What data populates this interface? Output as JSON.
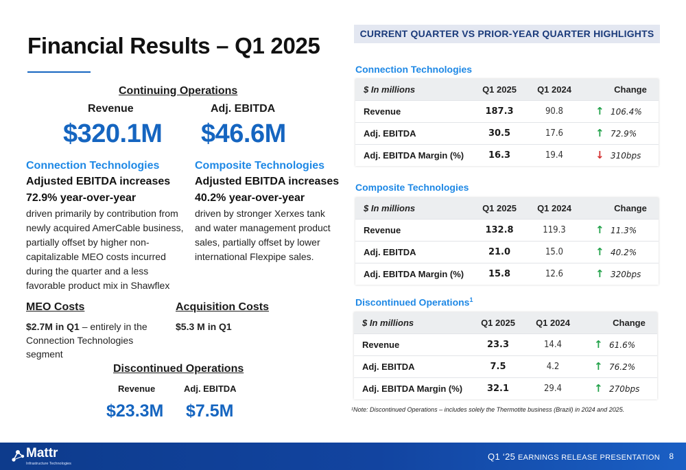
{
  "title": "Financial Results – Q1 2025",
  "continuing": {
    "heading": "Continuing Operations",
    "revenue_label": "Revenue",
    "revenue_value": "$320.1M",
    "ebitda_label": "Adj. EBITDA",
    "ebitda_value": "$46.6M"
  },
  "segments": [
    {
      "title": "Connection Technologies",
      "headline1": "Adjusted EBITDA increases",
      "headline2": "72.9% year-over-year",
      "body": "driven primarily by contribution from newly acquired AmerCable business, partially offset by higher non-capitalizable MEO costs incurred during the quarter and a less favorable product mix in Shawflex"
    },
    {
      "title": "Composite Technologies",
      "headline1": "Adjusted EBITDA increases",
      "headline2": "40.2% year-over-year",
      "body": "driven by stronger Xerxes tank and water management product sales, partially offset by lower international Flexpipe sales."
    }
  ],
  "meo": {
    "title": "MEO Costs",
    "bold": "$2.7M in Q1",
    "rest": " – entirely in the Connection Technologies segment"
  },
  "acquisition": {
    "title": "Acquisition Costs",
    "bold": "$5.3 M in Q1"
  },
  "discontinued": {
    "heading": "Discontinued Operations",
    "revenue_label": "Revenue",
    "revenue_value": "$23.3M",
    "ebitda_label": "Adj. EBITDA",
    "ebitda_value": "$7.5M"
  },
  "banner": "CURRENT QUARTER VS PRIOR-YEAR QUARTER HIGHLIGHTS",
  "tables": [
    {
      "title": "Connection Technologies",
      "title_sup": "",
      "headers": [
        "$ In millions",
        "Q1 2025",
        "Q1 2024",
        "Change"
      ],
      "rows": [
        {
          "label": "Revenue",
          "q1_2025": "187.3",
          "q1_2024": "90.8",
          "change": "106.4%",
          "direction": "up",
          "arrow": "↑"
        },
        {
          "label": "Adj. EBITDA",
          "q1_2025": "30.5",
          "q1_2024": "17.6",
          "change": "72.9%",
          "direction": "up",
          "arrow": "↑"
        },
        {
          "label": "Adj. EBITDA Margin (%)",
          "q1_2025": "16.3",
          "q1_2024": "19.4",
          "change": "310bps",
          "direction": "down",
          "arrow": "↓"
        }
      ]
    },
    {
      "title": "Composite Technologies",
      "title_sup": "",
      "headers": [
        "$ In millions",
        "Q1 2025",
        "Q1 2024",
        "Change"
      ],
      "rows": [
        {
          "label": "Revenue",
          "q1_2025": "132.8",
          "q1_2024": "119.3",
          "change": "11.3%",
          "direction": "up",
          "arrow": "↑"
        },
        {
          "label": "Adj. EBITDA",
          "q1_2025": "21.0",
          "q1_2024": "15.0",
          "change": "40.2%",
          "direction": "up",
          "arrow": "↑"
        },
        {
          "label": "Adj. EBITDA Margin (%)",
          "q1_2025": "15.8",
          "q1_2024": "12.6",
          "change": "320bps",
          "direction": "up",
          "arrow": "↑"
        }
      ]
    },
    {
      "title": "Discontinued Operations",
      "title_sup": "1",
      "headers": [
        "$ In millions",
        "Q1 2025",
        "Q1 2024",
        "Change"
      ],
      "rows": [
        {
          "label": "Revenue",
          "q1_2025": "23.3",
          "q1_2024": "14.4",
          "change": "61.6%",
          "direction": "up",
          "arrow": "↑"
        },
        {
          "label": "Adj. EBITDA",
          "q1_2025": "7.5",
          "q1_2024": "4.2",
          "change": "76.2%",
          "direction": "up",
          "arrow": "↑"
        },
        {
          "label": "Adj. EBITDA Margin (%)",
          "q1_2025": "32.1",
          "q1_2024": "29.4",
          "change": "270bps",
          "direction": "up",
          "arrow": "↑"
        }
      ]
    }
  ],
  "footnote": "¹Note: Discontinued Operations – includes solely the Thermotite business (Brazil) in 2024 and 2025.",
  "footer": {
    "logo_text": "Mattr",
    "logo_sub": "Infrastructure Technologies",
    "logo_icon": "network-nodes-icon",
    "presentation_prefix": "Q1 ‘25 ",
    "presentation_rest": "EARNINGS RELEASE PRESENTATION",
    "page_number": "8"
  },
  "colors": {
    "accent_blue": "#1565c0",
    "segment_blue": "#1e88e5",
    "up_green": "#22a24a",
    "down_red": "#d32f2f",
    "footer_navy": "#0d3b8c"
  }
}
